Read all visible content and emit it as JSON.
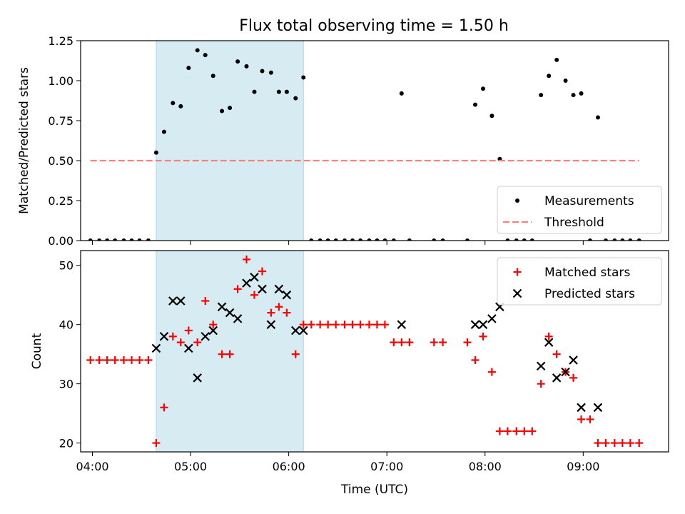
{
  "figure": {
    "title": "Flux total observing time = 1.50 h"
  },
  "chart_data": [
    {
      "type": "scatter",
      "ylabel": "Matched/Predicted stars",
      "xlabel": "",
      "xlim": [
        3.88,
        9.87
      ],
      "ylim": [
        0,
        1.25
      ],
      "yticks": [
        0,
        0.25,
        0.5,
        0.75,
        1.0,
        1.25
      ],
      "ytick_labels": [
        "0.00",
        "0.25",
        "0.50",
        "0.75",
        "1.00",
        "1.25"
      ],
      "shaded_region": {
        "x": [
          4.65,
          6.15
        ],
        "color": "#add8e6"
      },
      "legend": {
        "position": "lower-right",
        "entries": [
          "Measurements",
          "Threshold"
        ]
      },
      "series": [
        {
          "name": "Measurements",
          "marker": "dot",
          "color": "#000000",
          "x": [
            3.98,
            4.07,
            4.15,
            4.23,
            4.32,
            4.4,
            4.48,
            4.57,
            4.65,
            4.73,
            4.82,
            4.9,
            4.98,
            5.07,
            5.15,
            5.23,
            5.32,
            5.4,
            5.48,
            5.57,
            5.65,
            5.73,
            5.82,
            5.9,
            5.98,
            6.07,
            6.15,
            6.23,
            6.32,
            6.4,
            6.48,
            6.57,
            6.65,
            6.73,
            6.82,
            6.9,
            6.98,
            7.07,
            7.15,
            7.23,
            7.48,
            7.57,
            7.82,
            7.9,
            7.98,
            8.07,
            8.15,
            8.23,
            8.32,
            8.4,
            8.48,
            8.57,
            8.65,
            8.73,
            8.82,
            8.9,
            8.98,
            9.07,
            9.15,
            9.23,
            9.32,
            9.4,
            9.48,
            9.57
          ],
          "y": [
            0,
            0,
            0,
            0,
            0,
            0,
            0,
            0,
            0.55,
            0.68,
            0.86,
            0.84,
            1.08,
            1.19,
            1.16,
            1.03,
            0.81,
            0.83,
            1.12,
            1.09,
            0.93,
            1.06,
            1.05,
            0.93,
            0.93,
            0.89,
            1.02,
            0,
            0,
            0,
            0,
            0,
            0,
            0,
            0,
            0,
            0,
            0,
            0.92,
            0,
            0,
            0,
            0,
            0.85,
            0.95,
            0.78,
            0.51,
            0,
            0,
            0,
            0,
            0.91,
            1.03,
            1.13,
            1.0,
            0.91,
            0.92,
            0,
            0.77,
            0,
            0,
            0,
            0,
            0
          ]
        },
        {
          "name": "Threshold",
          "style": "dashed",
          "color": "#ff7f7f",
          "x": [
            3.98,
            9.57
          ],
          "y": [
            0.5,
            0.5
          ]
        }
      ]
    },
    {
      "type": "scatter",
      "ylabel": "Count",
      "xlabel": "Time (UTC)",
      "xlim": [
        3.88,
        9.87
      ],
      "ylim": [
        18.5,
        52.5
      ],
      "yticks": [
        20,
        30,
        40,
        50
      ],
      "ytick_labels": [
        "20",
        "30",
        "40",
        "50"
      ],
      "xticks": [
        4,
        5,
        6,
        7,
        8,
        9
      ],
      "xtick_labels": [
        "04:00",
        "05:00",
        "06:00",
        "07:00",
        "08:00",
        "09:00"
      ],
      "shaded_region": {
        "x": [
          4.65,
          6.15
        ],
        "color": "#add8e6"
      },
      "legend": {
        "position": "upper-right",
        "entries": [
          "Matched stars",
          "Predicted stars"
        ]
      },
      "series": [
        {
          "name": "Matched stars",
          "marker": "plus",
          "color": "#ff0000",
          "x": [
            3.98,
            4.07,
            4.15,
            4.23,
            4.32,
            4.4,
            4.48,
            4.57,
            4.65,
            4.73,
            4.82,
            4.9,
            4.98,
            5.07,
            5.15,
            5.23,
            5.32,
            5.4,
            5.48,
            5.57,
            5.65,
            5.73,
            5.82,
            5.9,
            5.98,
            6.07,
            6.15,
            6.23,
            6.32,
            6.4,
            6.48,
            6.57,
            6.65,
            6.73,
            6.82,
            6.9,
            6.98,
            7.07,
            7.15,
            7.23,
            7.48,
            7.57,
            7.82,
            7.9,
            7.98,
            8.07,
            8.15,
            8.23,
            8.32,
            8.4,
            8.48,
            8.57,
            8.65,
            8.73,
            8.82,
            8.9,
            8.98,
            9.07,
            9.15,
            9.23,
            9.32,
            9.4,
            9.48,
            9.57
          ],
          "y": [
            34,
            34,
            34,
            34,
            34,
            34,
            34,
            34,
            20,
            26,
            38,
            37,
            39,
            37,
            44,
            40,
            35,
            35,
            46,
            51,
            45,
            49,
            42,
            43,
            42,
            35,
            40,
            40,
            40,
            40,
            40,
            40,
            40,
            40,
            40,
            40,
            40,
            37,
            37,
            37,
            37,
            37,
            37,
            34,
            38,
            32,
            22,
            22,
            22,
            22,
            22,
            30,
            38,
            35,
            32,
            31,
            24,
            24,
            20,
            20,
            20,
            20,
            20,
            20
          ]
        },
        {
          "name": "Predicted stars",
          "marker": "x",
          "color": "#000000",
          "x": [
            4.65,
            4.73,
            4.82,
            4.9,
            4.98,
            5.07,
            5.15,
            5.23,
            5.32,
            5.4,
            5.48,
            5.57,
            5.65,
            5.73,
            5.82,
            5.9,
            5.98,
            6.07,
            6.15,
            7.15,
            7.9,
            7.98,
            8.07,
            8.15,
            8.57,
            8.65,
            8.73,
            8.82,
            8.9,
            8.98,
            9.15
          ],
          "y": [
            36,
            38,
            44,
            44,
            36,
            31,
            38,
            39,
            43,
            42,
            41,
            47,
            48,
            46,
            40,
            46,
            45,
            39,
            39,
            40,
            40,
            40,
            41,
            43,
            33,
            37,
            31,
            32,
            34,
            26,
            26
          ]
        }
      ]
    }
  ]
}
